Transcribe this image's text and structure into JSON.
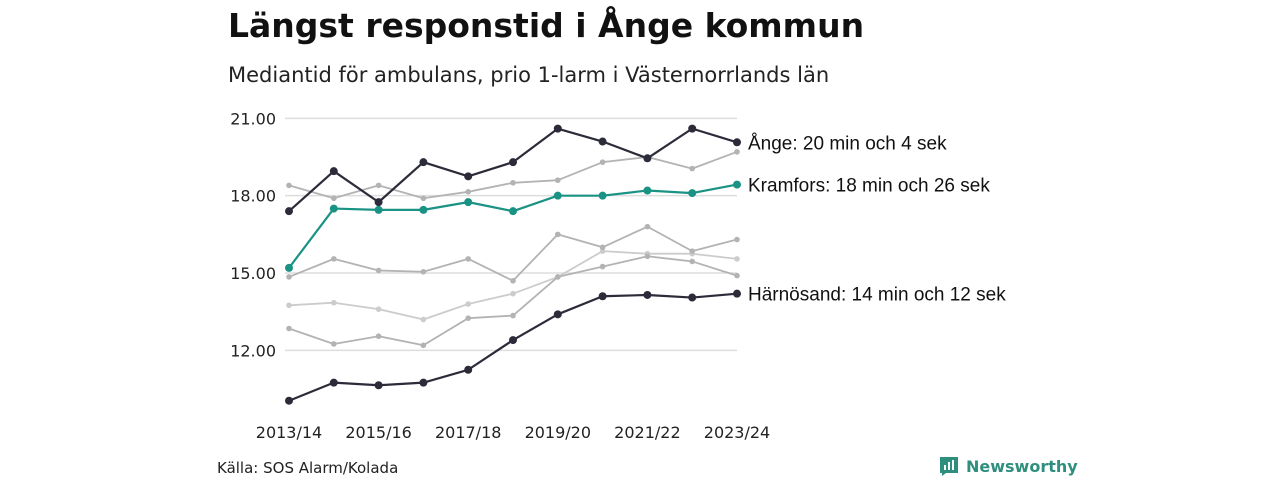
{
  "title": "Längst responstid i Ånge kommun",
  "subtitle": "Mediantid för ambulans, prio 1-larm i Västernorrlands län",
  "source": "Källa: SOS Alarm/Kolada",
  "brand": {
    "name": "Newsworthy",
    "icon": "newsworthy-logo-icon",
    "color": "#2e8f7e"
  },
  "chart_data": {
    "type": "line",
    "x": [
      "2013/14",
      "2014/15",
      "2015/16",
      "2016/17",
      "2017/18",
      "2018/19",
      "2019/20",
      "2020/21",
      "2021/22",
      "2022/23",
      "2023/24"
    ],
    "x_tick_labels": [
      "2013/14",
      "2015/16",
      "2017/18",
      "2019/20",
      "2021/22",
      "2023/24"
    ],
    "y_tick_labels": [
      "12.00",
      "15.00",
      "18.00",
      "21.00"
    ],
    "y_ticks": [
      12,
      15,
      18,
      21
    ],
    "ylim": [
      10,
      21.4
    ],
    "grid": true,
    "series": [
      {
        "name": "",
        "color": "#cccccc",
        "values": [
          13.75,
          13.85,
          13.6,
          13.2,
          13.8,
          14.2,
          14.85,
          15.85,
          15.75,
          15.75,
          15.55
        ]
      },
      {
        "name": "",
        "color": "#b3b3b3",
        "values": [
          12.85,
          12.25,
          12.55,
          12.2,
          13.25,
          13.35,
          14.85,
          15.25,
          15.65,
          15.45,
          14.9
        ]
      },
      {
        "name": "",
        "color": "#b3b3b3",
        "values": [
          14.85,
          15.55,
          15.1,
          15.05,
          15.55,
          14.7,
          16.5,
          16.0,
          16.8,
          15.85,
          16.3
        ]
      },
      {
        "name": "",
        "color": "#b3b3b3",
        "values": [
          18.4,
          17.9,
          18.4,
          17.9,
          18.15,
          18.5,
          18.6,
          19.3,
          19.5,
          19.05,
          19.7
        ]
      },
      {
        "name": "Härnösand: 14 min och 12 sek",
        "color": "#2b2b3a",
        "values": [
          10.05,
          10.75,
          10.65,
          10.75,
          11.25,
          12.4,
          13.4,
          14.1,
          14.15,
          14.05,
          14.2
        ]
      },
      {
        "name": "Kramfors: 18 min och 26 sek",
        "color": "#1a9384",
        "values": [
          15.2,
          17.5,
          17.45,
          17.45,
          17.75,
          17.4,
          18.0,
          18.0,
          18.2,
          18.1,
          18.43
        ]
      },
      {
        "name": "Ånge: 20 min och 4 sek",
        "color": "#2b2b3a",
        "values": [
          17.4,
          18.95,
          17.75,
          19.3,
          18.75,
          19.3,
          20.6,
          20.1,
          19.45,
          20.6,
          20.07
        ]
      }
    ]
  }
}
